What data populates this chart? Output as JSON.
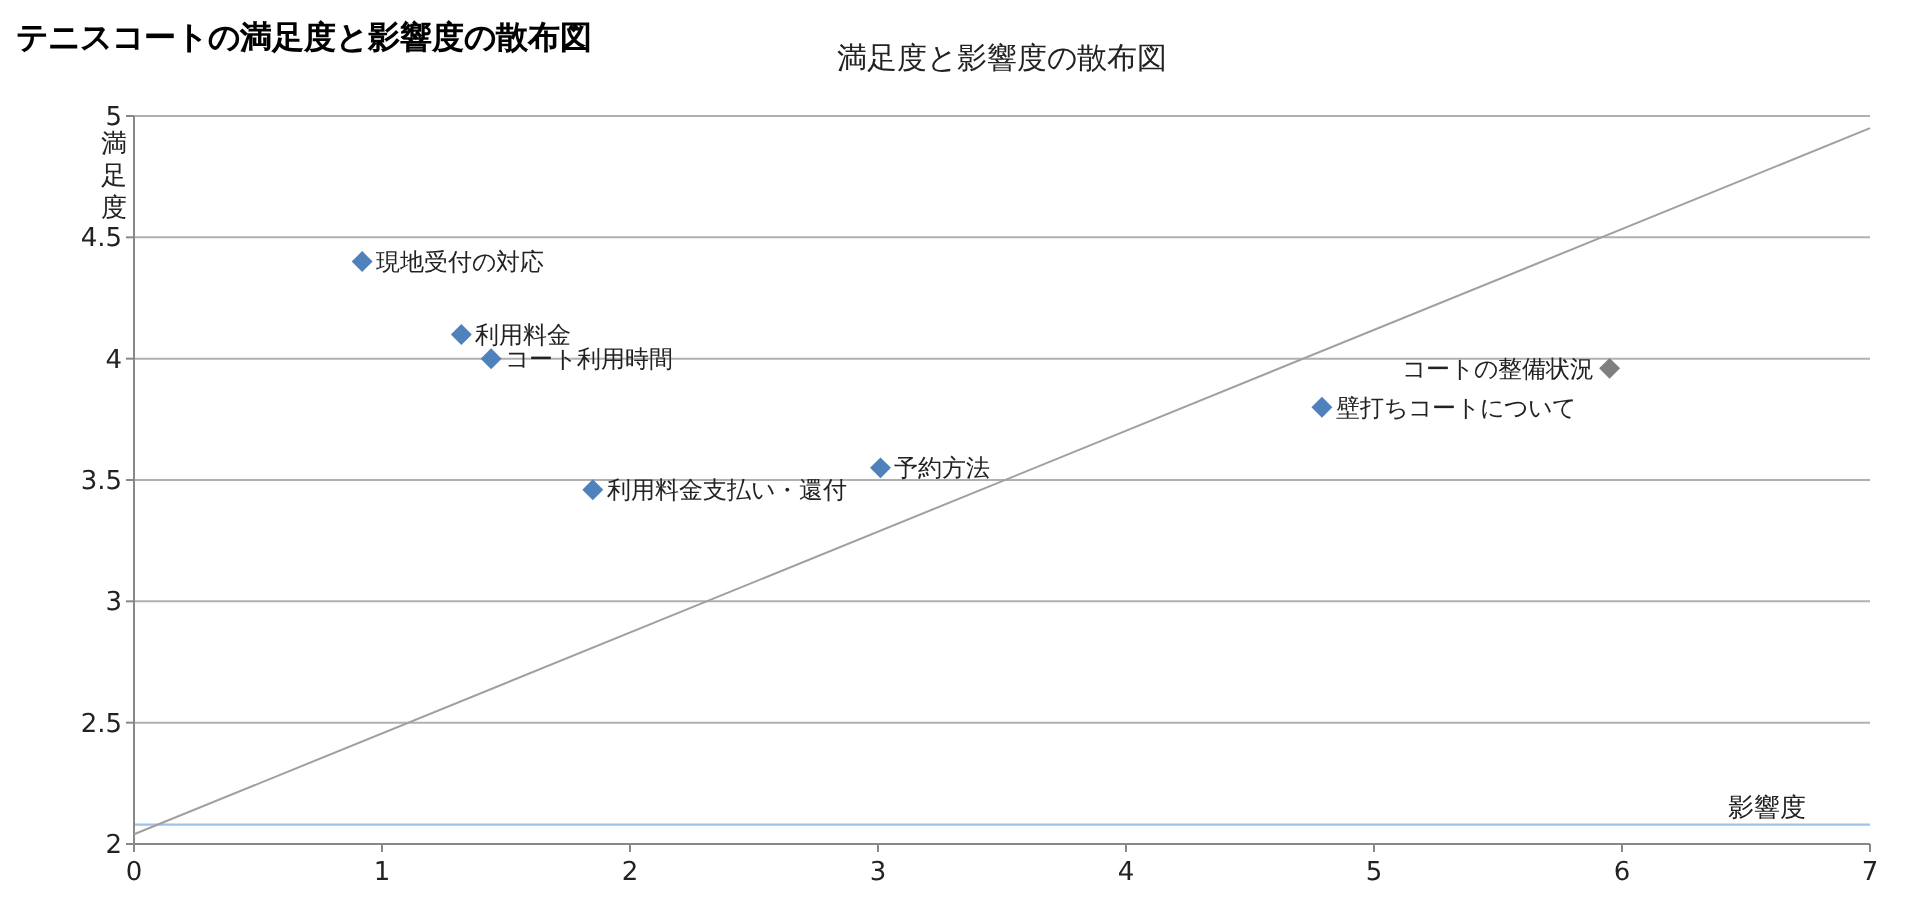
{
  "chart_data": {
    "type": "scatter",
    "title": "テニスコートの満足度と影響度の散布図",
    "subtitle": "満足度と影響度の散布図",
    "xlabel": "影響度",
    "ylabel": "満足度",
    "xlim": [
      0,
      7
    ],
    "xticks": [
      0,
      1,
      2,
      3,
      4,
      5,
      6,
      7
    ],
    "ylim": [
      2,
      5
    ],
    "yticks": [
      2,
      2.5,
      3,
      3.5,
      4,
      4.5,
      5
    ],
    "grid": "y",
    "marker": "diamond",
    "series": [
      {
        "x": [
          0.92,
          1.32,
          1.44,
          1.85,
          3.01,
          4.79,
          5.95
        ],
        "values": [
          4.4,
          4.1,
          4.0,
          3.46,
          3.55,
          3.8,
          3.96
        ],
        "colors": [
          "#4f81bd",
          "#4f81bd",
          "#4f81bd",
          "#4f81bd",
          "#4f81bd",
          "#4f81bd",
          "#7f7f7f"
        ]
      },
      {
        "type": "line",
        "x": [
          0,
          7
        ],
        "values": [
          2.04,
          4.95
        ],
        "color": "#a0a0a0",
        "marker": "none"
      }
    ],
    "ref_lines": [
      {
        "axis": "y",
        "value": 2.08,
        "color": "#9dc3e6"
      }
    ],
    "annotations": [
      {
        "text": "現地受付の対応",
        "x": 0.92,
        "y": 4.4
      },
      {
        "text": "利用料金",
        "x": 1.32,
        "y": 4.1
      },
      {
        "text": "コート利用時間",
        "x": 1.44,
        "y": 4.0
      },
      {
        "text": "利用料金支払い・還付",
        "x": 1.85,
        "y": 3.46
      },
      {
        "text": "予約方法",
        "x": 3.01,
        "y": 3.55
      },
      {
        "text": "壁打ちコートについて",
        "x": 4.79,
        "y": 3.8
      },
      {
        "text": "コートの整備状況",
        "x": 5.95,
        "y": 3.96
      }
    ]
  }
}
